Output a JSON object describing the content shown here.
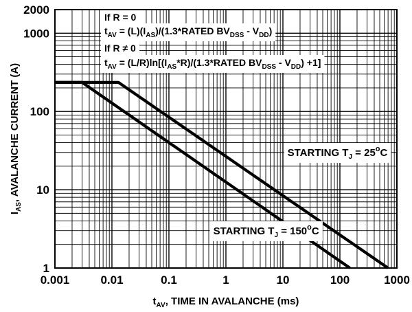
{
  "chart_data": {
    "type": "line",
    "x_scale": "log",
    "y_scale": "log",
    "xlim": [
      0.001,
      1000
    ],
    "ylim": [
      1,
      2000
    ],
    "grid": true,
    "xlabel": {
      "main": "t",
      "sub": "AV",
      "rest": ", TIME IN AVALANCHE (ms)"
    },
    "ylabel": {
      "main": "I",
      "sub": "AS",
      "rest": ", AVALANCHE CURRENT (A)"
    },
    "x_ticks": [
      {
        "value": 0.001,
        "label": "0.001"
      },
      {
        "value": 0.01,
        "label": "0.01"
      },
      {
        "value": 0.1,
        "label": "0.1"
      },
      {
        "value": 1,
        "label": "1"
      },
      {
        "value": 10,
        "label": "10"
      },
      {
        "value": 100,
        "label": "100"
      },
      {
        "value": 1000,
        "label": "1000"
      }
    ],
    "y_ticks": [
      {
        "value": 1,
        "label": "1"
      },
      {
        "value": 10,
        "label": "10"
      },
      {
        "value": 100,
        "label": "100"
      },
      {
        "value": 1000,
        "label": "1000"
      },
      {
        "value": 2000,
        "label": "2000"
      }
    ],
    "series": [
      {
        "name_parts": [
          "STARTING T",
          "J",
          " = 25",
          "o",
          "C"
        ],
        "x": [
          0.001,
          0.013,
          700
        ],
        "y": [
          235,
          235,
          1
        ],
        "label_anchor": [
          12,
          27
        ]
      },
      {
        "name_parts": [
          "STARTING T",
          "J",
          " = 150",
          "o",
          "C"
        ],
        "x": [
          0.001,
          0.003,
          150
        ],
        "y": [
          235,
          235,
          1
        ],
        "label_anchor": [
          0.6,
          2.7
        ]
      }
    ],
    "annotation": {
      "lines": [
        [
          {
            "t": "If R = 0"
          }
        ],
        [
          {
            "t": "t"
          },
          {
            "t": "AV",
            "s": "sub"
          },
          {
            "t": " = (L)(I"
          },
          {
            "t": "AS",
            "s": "sub"
          },
          {
            "t": ")/(1.3*RATED BV"
          },
          {
            "t": "DSS",
            "s": "sub"
          },
          {
            "t": " - V"
          },
          {
            "t": "DD",
            "s": "sub"
          },
          {
            "t": ")"
          }
        ],
        [
          {
            "t": "If R ≠ 0"
          }
        ],
        [
          {
            "t": "t"
          },
          {
            "t": "AV",
            "s": "sub"
          },
          {
            "t": " = (L/R)ln[(I"
          },
          {
            "t": "AS",
            "s": "sub"
          },
          {
            "t": "*R)/(1.3*RATED BV"
          },
          {
            "t": "DSS",
            "s": "sub"
          },
          {
            "t": " - V"
          },
          {
            "t": "DD",
            "s": "sub"
          },
          {
            "t": ") +1]"
          }
        ]
      ]
    }
  }
}
